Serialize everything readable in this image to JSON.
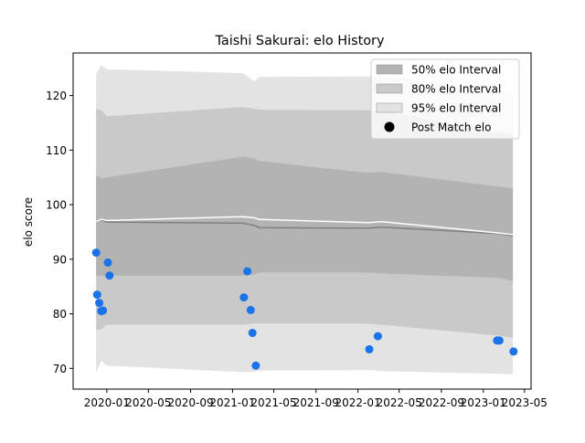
{
  "chart_data": {
    "type": "line",
    "title": "Taishi Sakurai: elo History",
    "xlabel": "",
    "ylabel": "elo score",
    "x_ticks": [
      "2020-01",
      "2020-05",
      "2020-09",
      "2021-01",
      "2021-05",
      "2021-09",
      "2022-01",
      "2022-05",
      "2022-09",
      "2023-01",
      "2023-05"
    ],
    "y_ticks": [
      70,
      80,
      90,
      100,
      110,
      120
    ],
    "xlim": [
      "2019-09-25",
      "2023-05-20"
    ],
    "ylim": [
      66.2,
      127.8
    ],
    "grid": false,
    "legend_position": "top-right",
    "legend": {
      "i50": "50% elo Interval",
      "i80": "80% elo Interval",
      "i95": "95% elo Interval",
      "post": "Post Match elo"
    },
    "colors": {
      "band50": "#b3b3b3",
      "band80": "#c9c9c9",
      "band95": "#e3e3e3",
      "median_line": "#808080",
      "mean_line": "#ffffff",
      "points": "#1a73e8"
    },
    "bands": {
      "x": [
        "2019-12-01",
        "2019-12-16",
        "2020-01-01",
        "2021-02-01",
        "2021-03-05",
        "2021-03-20",
        "2022-02-01",
        "2022-03-10",
        "2023-02-15",
        "2023-03-28"
      ],
      "p50_upper": [
        105.5,
        104.8,
        105.0,
        108.8,
        108.5,
        108.0,
        105.8,
        106.0,
        103.3,
        103.0
      ],
      "p50_lower": [
        87.0,
        87.0,
        87.0,
        87.0,
        87.2,
        87.6,
        87.6,
        87.4,
        86.6,
        86.0
      ],
      "p80_upper": [
        117.6,
        117.3,
        116.2,
        117.9,
        117.6,
        117.4,
        117.3,
        117.2,
        113.3,
        113.0
      ],
      "p80_lower": [
        77.0,
        77.2,
        78.0,
        78.0,
        78.2,
        78.2,
        78.2,
        78.0,
        76.0,
        75.6
      ],
      "p95_upper": [
        124.0,
        125.6,
        124.8,
        124.1,
        122.6,
        123.4,
        123.5,
        123.6,
        121.0,
        120.6
      ],
      "p95_lower": [
        69.2,
        71.4,
        70.5,
        69.3,
        69.4,
        69.6,
        69.7,
        69.5,
        69.0,
        68.9
      ],
      "median": [
        96.9,
        97.2,
        96.8,
        96.6,
        96.2,
        95.8,
        95.7,
        95.9,
        94.7,
        94.3
      ],
      "mean": [
        96.9,
        97.3,
        97.1,
        97.8,
        97.6,
        97.3,
        96.7,
        96.9,
        94.8,
        94.5
      ]
    },
    "points": {
      "x": [
        "2019-12-01",
        "2019-12-04",
        "2019-12-10",
        "2019-12-16",
        "2019-12-21",
        "2020-01-04",
        "2020-01-09",
        "2021-02-03",
        "2021-02-13",
        "2021-02-23",
        "2021-02-28",
        "2021-03-10",
        "2022-02-03",
        "2022-02-28",
        "2023-02-10",
        "2023-02-17",
        "2023-03-30"
      ],
      "y": [
        91.2,
        83.5,
        82.0,
        80.5,
        80.6,
        89.4,
        87.0,
        83.0,
        87.8,
        80.7,
        76.5,
        70.5,
        73.5,
        75.9,
        75.1,
        75.1,
        73.1
      ]
    }
  }
}
